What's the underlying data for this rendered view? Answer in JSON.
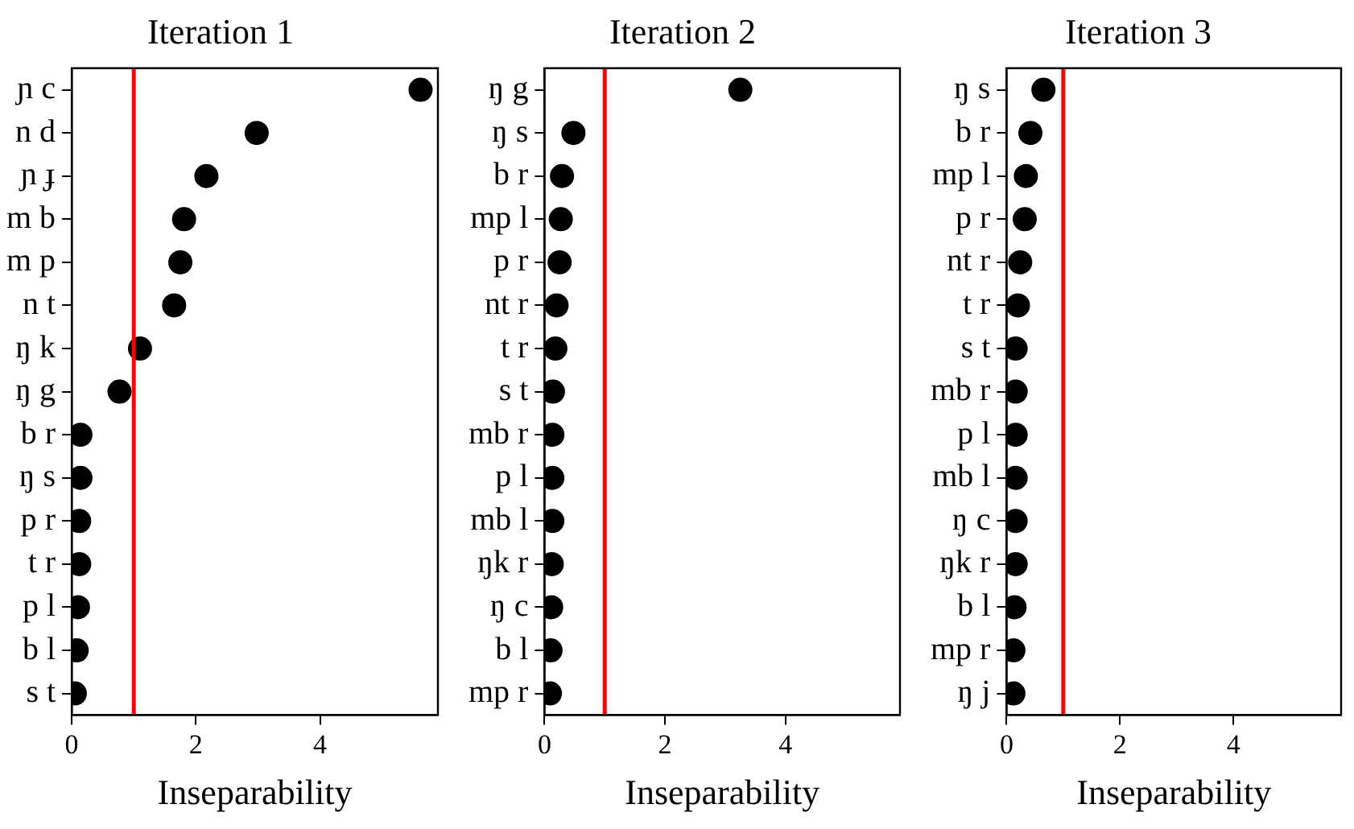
{
  "chart_data": [
    {
      "type": "scatter",
      "orientation": "horizontal",
      "title": "Iteration 1",
      "xlabel": "Inseparability",
      "marker": "circle",
      "grid": false,
      "categories": [
        "ɲ c",
        "n d",
        "ɲ ɟ",
        "m b",
        "m p",
        "n t",
        "ŋ k",
        "ŋ g",
        "b r",
        "ŋ s",
        "p r",
        "t r",
        "p l",
        "b l",
        "s t"
      ],
      "series": [
        {
          "color": "#000000",
          "values": [
            5.62,
            2.98,
            2.17,
            1.81,
            1.75,
            1.65,
            1.1,
            0.77,
            0.14,
            0.14,
            0.12,
            0.12,
            0.1,
            0.08,
            0.05
          ]
        }
      ],
      "xlim": [
        0,
        5.9
      ],
      "xticks": [
        0,
        2,
        4
      ],
      "ref_lines": [
        {
          "axis": "x",
          "value": 1,
          "color": "#ff0000"
        }
      ]
    },
    {
      "type": "scatter",
      "orientation": "horizontal",
      "title": "Iteration 2",
      "xlabel": "Inseparability",
      "marker": "circle",
      "grid": false,
      "categories": [
        "ŋ g",
        "ŋ s",
        "b r",
        "mp l",
        "p r",
        "nt r",
        "t r",
        "s t",
        "mb r",
        "p l",
        "mb l",
        "ŋk r",
        "ŋ c",
        "b l",
        "mp r"
      ],
      "series": [
        {
          "color": "#000000",
          "values": [
            3.25,
            0.48,
            0.29,
            0.27,
            0.25,
            0.2,
            0.18,
            0.14,
            0.13,
            0.13,
            0.13,
            0.12,
            0.11,
            0.1,
            0.09
          ]
        }
      ],
      "xlim": [
        0,
        5.9
      ],
      "xticks": [
        0,
        2,
        4
      ],
      "ref_lines": [
        {
          "axis": "x",
          "value": 1,
          "color": "#ff0000"
        }
      ]
    },
    {
      "type": "scatter",
      "orientation": "horizontal",
      "title": "Iteration 3",
      "xlabel": "Inseparability",
      "marker": "circle",
      "grid": false,
      "categories": [
        "ŋ s",
        "b r",
        "mp l",
        "p r",
        "nt r",
        "t r",
        "s t",
        "mb r",
        "p l",
        "mb l",
        "ŋ c",
        "ŋk r",
        "b l",
        "mp r",
        "ŋ j"
      ],
      "series": [
        {
          "color": "#000000",
          "values": [
            0.65,
            0.42,
            0.34,
            0.32,
            0.24,
            0.2,
            0.16,
            0.16,
            0.16,
            0.16,
            0.16,
            0.16,
            0.14,
            0.12,
            0.12
          ]
        }
      ],
      "xlim": [
        0,
        5.9
      ],
      "xticks": [
        0,
        2,
        4
      ],
      "ref_lines": [
        {
          "axis": "x",
          "value": 1,
          "color": "#ff0000"
        }
      ]
    }
  ]
}
